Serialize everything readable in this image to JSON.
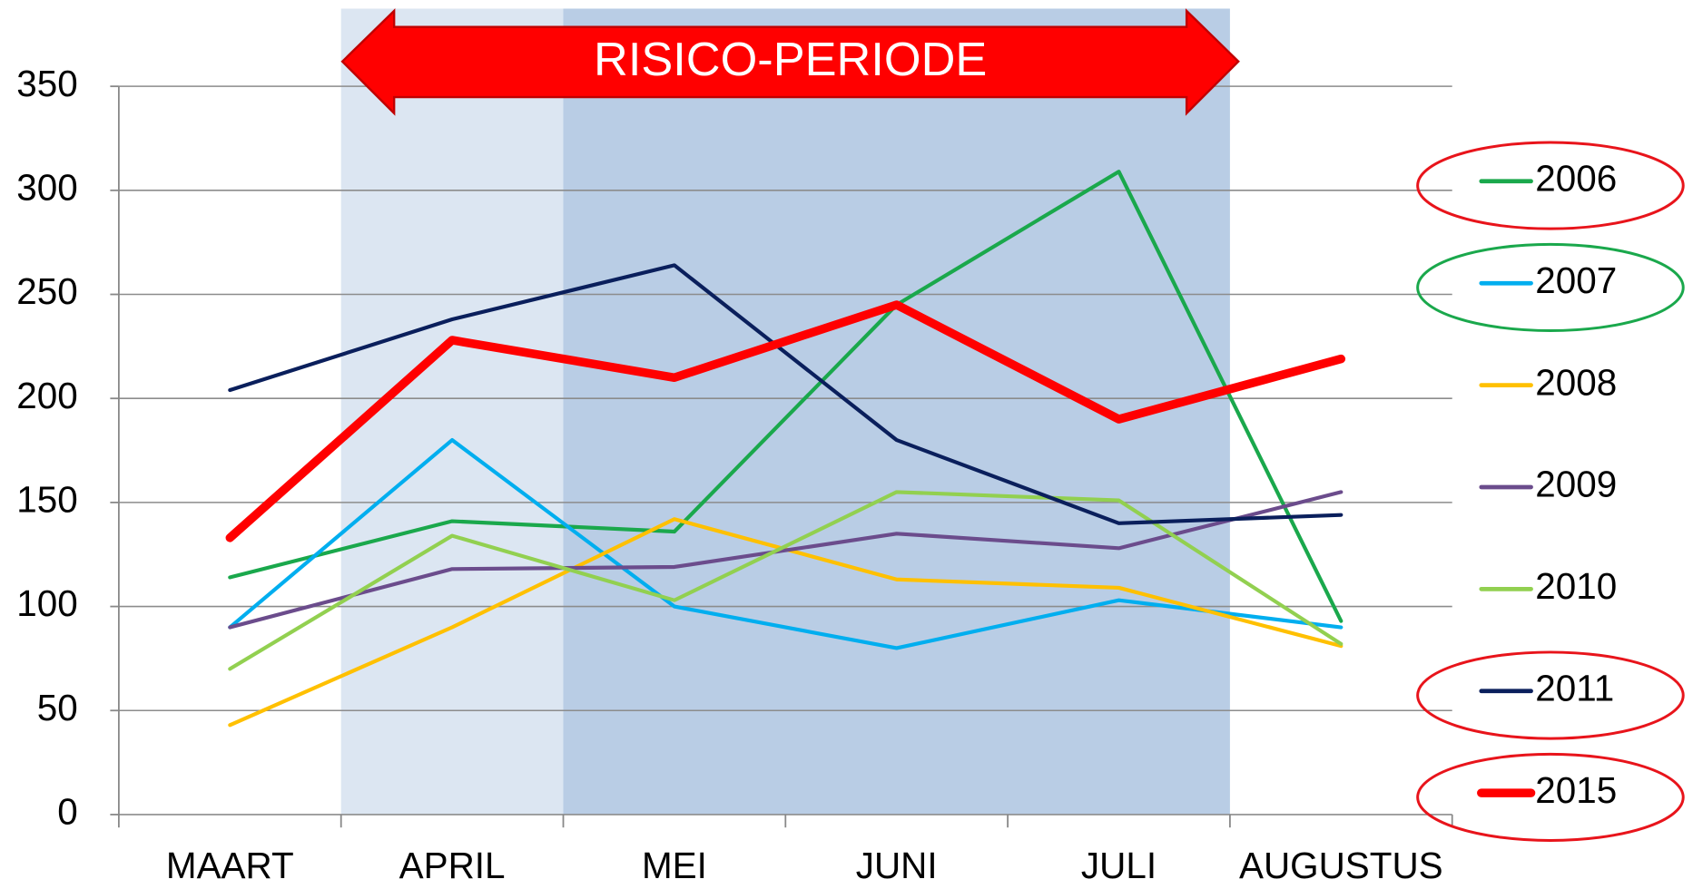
{
  "chart_data": {
    "type": "line",
    "annotation": "RISICO-PERIODE",
    "categories": [
      "MAART",
      "APRIL",
      "MEI",
      "JUNI",
      "JULI",
      "AUGUSTUS"
    ],
    "ylim": [
      0,
      350
    ],
    "yticks": [
      0,
      50,
      100,
      150,
      200,
      250,
      300,
      350
    ],
    "grid": true,
    "legend": "right",
    "series": [
      {
        "name": "2006",
        "color": "#1aa84c",
        "values": [
          114,
          141,
          136,
          245,
          309,
          93
        ],
        "ring": "#e8141b"
      },
      {
        "name": "2007",
        "color": "#00aeef",
        "values": [
          90,
          180,
          100,
          80,
          103,
          90
        ],
        "ring": "#1aa84c"
      },
      {
        "name": "2008",
        "color": "#ffc000",
        "values": [
          43,
          90,
          142,
          113,
          109,
          81
        ]
      },
      {
        "name": "2009",
        "color": "#6b4c8c",
        "values": [
          90,
          118,
          119,
          135,
          128,
          155
        ]
      },
      {
        "name": "2010",
        "color": "#92d050",
        "values": [
          70,
          134,
          103,
          155,
          151,
          82
        ]
      },
      {
        "name": "2011",
        "color": "#0a1f5c",
        "values": [
          204,
          238,
          264,
          180,
          140,
          144
        ],
        "ring": "#e8141b"
      },
      {
        "name": "2015",
        "color": "#ff0000",
        "values": [
          133,
          228,
          210,
          245,
          190,
          219
        ],
        "ring": "#e8141b",
        "width": 8
      }
    ]
  }
}
